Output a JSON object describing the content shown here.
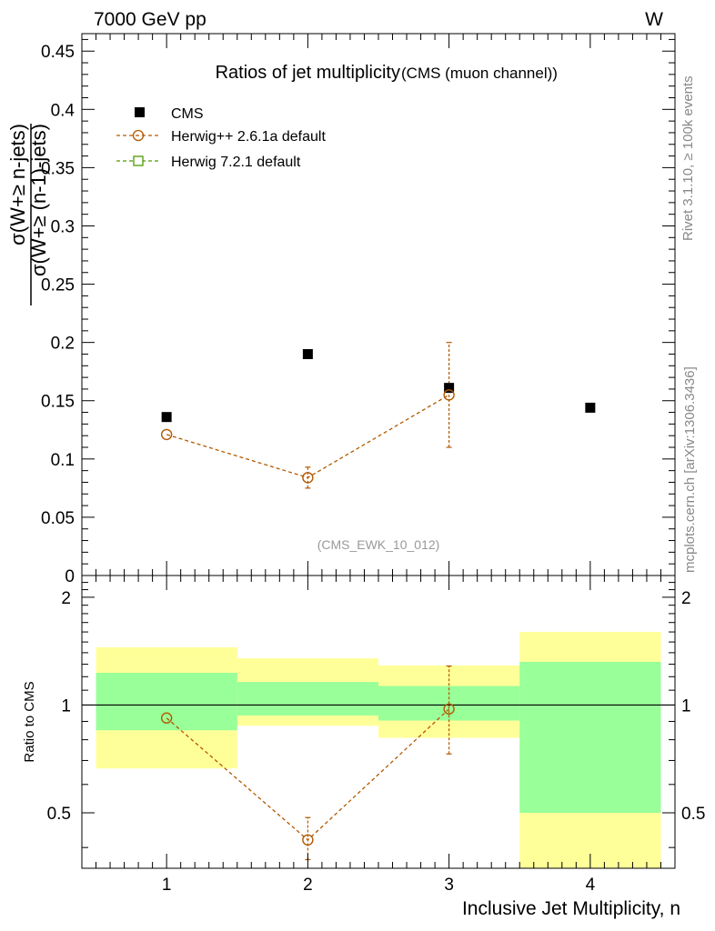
{
  "header": {
    "energy_label": "7000 GeV pp",
    "process_label": "W"
  },
  "side_text": {
    "rivet": "Rivet 3.1.10, ≥ 100k events",
    "mcplots": "mcplots.cern.ch [arXiv:1306.3436]"
  },
  "chart_data": [
    {
      "type": "scatter",
      "title": "Ratios of jet multiplicity",
      "subtitle": "(CMS (muon channel))",
      "analysis_tag": "(CMS_EWK_10_012)",
      "ylabel_numerator": "σ(W+≥ n-jets)",
      "ylabel_denominator": "σ(W+≥ (n-1)-jets)",
      "xlabel": "",
      "ylim": [
        0,
        0.465
      ],
      "xlim": [
        0.4,
        4.6
      ],
      "x_ticks": [
        1,
        2,
        3,
        4
      ],
      "y_ticks": [
        {
          "value": 0,
          "label": "0"
        },
        {
          "value": 0.05,
          "label": "0.05"
        },
        {
          "value": 0.1,
          "label": "0.1"
        },
        {
          "value": 0.15,
          "label": "0.15"
        },
        {
          "value": 0.2,
          "label": "0.2"
        },
        {
          "value": 0.25,
          "label": "0.25"
        },
        {
          "value": 0.3,
          "label": "0.3"
        },
        {
          "value": 0.35,
          "label": "0.35"
        },
        {
          "value": 0.4,
          "label": "0.4"
        },
        {
          "value": 0.45,
          "label": "0.45"
        }
      ],
      "legend_position": "top-left",
      "series": [
        {
          "name": "CMS",
          "marker": "filled-square",
          "color": "#000000",
          "x": [
            1,
            2,
            3,
            4
          ],
          "y": [
            0.136,
            0.19,
            0.161,
            0.144
          ]
        },
        {
          "name": "Herwig++ 2.6.1a default",
          "marker": "open-circle",
          "line": "dashed",
          "color": "#b35900",
          "x": [
            1,
            2,
            3
          ],
          "y": [
            0.121,
            0.084,
            0.155
          ],
          "yerr_low": [
            0.0,
            0.009,
            0.045
          ],
          "yerr_high": [
            0.0,
            0.009,
            0.045
          ]
        },
        {
          "name": "Herwig 7.2.1 default",
          "marker": "open-square",
          "line": "dashed",
          "color": "#4d9900",
          "x": [],
          "y": []
        }
      ]
    },
    {
      "type": "scatter",
      "ylabel": "Ratio to CMS",
      "xlabel": "Inclusive Jet Multiplicity, n",
      "ylim": [
        0.35,
        2.3
      ],
      "yscale": "log",
      "xlim": [
        0.4,
        4.6
      ],
      "x_ticks": [
        {
          "value": 1,
          "label": "1"
        },
        {
          "value": 2,
          "label": "2"
        },
        {
          "value": 3,
          "label": "3"
        },
        {
          "value": 4,
          "label": "4"
        }
      ],
      "y_ticks": [
        {
          "value": 0.5,
          "label": "0.5"
        },
        {
          "value": 1,
          "label": "1"
        },
        {
          "value": 2,
          "label": "2"
        }
      ],
      "uncertainty_bands": {
        "x_edges": [
          [
            0.5,
            1.5
          ],
          [
            1.5,
            2.5
          ],
          [
            2.5,
            3.5
          ],
          [
            3.5,
            4.5
          ]
        ],
        "stat": [
          [
            0.85,
            1.23
          ],
          [
            0.935,
            1.16
          ],
          [
            0.905,
            1.13
          ],
          [
            0.5,
            1.32
          ]
        ],
        "total": [
          [
            0.665,
            1.45
          ],
          [
            0.875,
            1.35
          ],
          [
            0.81,
            1.29
          ],
          [
            0.35,
            1.6
          ]
        ],
        "stat_color": "#99ff99",
        "total_color": "#ffff99"
      },
      "series": [
        {
          "name": "Herwig++ 2.6.1a default",
          "marker": "open-circle",
          "line": "dashed",
          "color": "#b35900",
          "x": [
            1,
            2,
            3
          ],
          "y": [
            0.92,
            0.42,
            0.975
          ],
          "yerr_low": [
            0.0,
            0.05,
            0.245
          ],
          "yerr_high": [
            0.0,
            0.065,
            0.31
          ]
        }
      ]
    }
  ]
}
